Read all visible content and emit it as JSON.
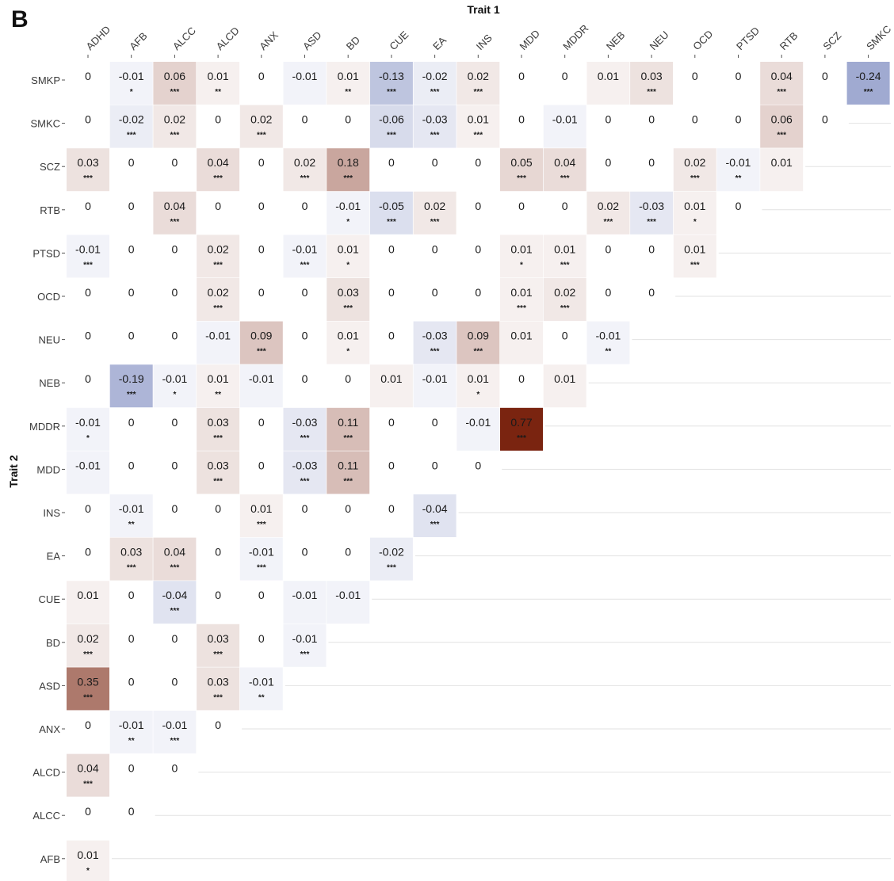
{
  "panel_label": "B",
  "chart_data": {
    "type": "heatmap",
    "xlabel": "Trait 1",
    "ylabel": "Trait 2",
    "x_categories": [
      "ADHD",
      "AFB",
      "ALCC",
      "ALCD",
      "ANX",
      "ASD",
      "BD",
      "CUE",
      "EA",
      "INS",
      "MDD",
      "MDDR",
      "NEB",
      "NEU",
      "OCD",
      "PTSD",
      "RTB",
      "SCZ",
      "SMKC"
    ],
    "y_categories": [
      "SMKP",
      "SMKC",
      "SCZ",
      "RTB",
      "PTSD",
      "OCD",
      "NEU",
      "NEB",
      "MDDR",
      "MDD",
      "INS",
      "EA",
      "CUE",
      "BD",
      "ASD",
      "ANX",
      "ALCD",
      "ALCC",
      "AFB"
    ],
    "color_scale": {
      "negative": "#3b4fa0",
      "zero": "#ffffff",
      "positive": "#7a2410",
      "max_abs": 0.77
    },
    "grid": "horizontal-lines",
    "rows": [
      {
        "trait": "SMKP",
        "values": [
          "0",
          "-0.01",
          "0.06",
          "0.01",
          "0",
          "-0.01",
          "0.01",
          "-0.13",
          "-0.02",
          "0.02",
          "0",
          "0",
          "0.01",
          "0.03",
          "0",
          "0",
          "0.04",
          "0",
          "-0.24"
        ],
        "sig": [
          "",
          "*",
          "***",
          "**",
          "",
          "",
          "**",
          "***",
          "***",
          "***",
          "",
          "",
          "",
          "***",
          "",
          "",
          "***",
          "",
          "***"
        ]
      },
      {
        "trait": "SMKC",
        "values": [
          "0",
          "-0.02",
          "0.02",
          "0",
          "0.02",
          "0",
          "0",
          "-0.06",
          "-0.03",
          "0.01",
          "0",
          "-0.01",
          "0",
          "0",
          "0",
          "0",
          "0.06",
          "0"
        ],
        "sig": [
          "",
          "***",
          "***",
          "",
          "***",
          "",
          "",
          "***",
          "***",
          "***",
          "",
          "",
          "",
          "",
          "",
          "",
          "***",
          ""
        ]
      },
      {
        "trait": "SCZ",
        "values": [
          "0.03",
          "0",
          "0",
          "0.04",
          "0",
          "0.02",
          "0.18",
          "0",
          "0",
          "0",
          "0.05",
          "0.04",
          "0",
          "0",
          "0.02",
          "-0.01",
          "0.01"
        ],
        "sig": [
          "***",
          "",
          "",
          "***",
          "",
          "***",
          "***",
          "",
          "",
          "",
          "***",
          "***",
          "",
          "",
          "***",
          "**",
          ""
        ]
      },
      {
        "trait": "RTB",
        "values": [
          "0",
          "0",
          "0.04",
          "0",
          "0",
          "0",
          "-0.01",
          "-0.05",
          "0.02",
          "0",
          "0",
          "0",
          "0.02",
          "-0.03",
          "0.01",
          "0"
        ],
        "sig": [
          "",
          "",
          "***",
          "",
          "",
          "",
          "*",
          "***",
          "***",
          "",
          "",
          "",
          "***",
          "***",
          "*",
          ""
        ]
      },
      {
        "trait": "PTSD",
        "values": [
          "-0.01",
          "0",
          "0",
          "0.02",
          "0",
          "-0.01",
          "0.01",
          "0",
          "0",
          "0",
          "0.01",
          "0.01",
          "0",
          "0",
          "0.01"
        ],
        "sig": [
          "***",
          "",
          "",
          "***",
          "",
          "***",
          "*",
          "",
          "",
          "",
          "*",
          "***",
          "",
          "",
          "***"
        ]
      },
      {
        "trait": "OCD",
        "values": [
          "0",
          "0",
          "0",
          "0.02",
          "0",
          "0",
          "0.03",
          "0",
          "0",
          "0",
          "0.01",
          "0.02",
          "0",
          "0"
        ],
        "sig": [
          "",
          "",
          "",
          "***",
          "",
          "",
          "***",
          "",
          "",
          "",
          "***",
          "***",
          "",
          ""
        ]
      },
      {
        "trait": "NEU",
        "values": [
          "0",
          "0",
          "0",
          "-0.01",
          "0.09",
          "0",
          "0.01",
          "0",
          "-0.03",
          "0.09",
          "0.01",
          "0",
          "-0.01"
        ],
        "sig": [
          "",
          "",
          "",
          "",
          "***",
          "",
          "*",
          "",
          "***",
          "***",
          "",
          "",
          "**"
        ]
      },
      {
        "trait": "NEB",
        "values": [
          "0",
          "-0.19",
          "-0.01",
          "0.01",
          "-0.01",
          "0",
          "0",
          "0.01",
          "-0.01",
          "0.01",
          "0",
          "0.01"
        ],
        "sig": [
          "",
          "***",
          "*",
          "**",
          "",
          "",
          "",
          "",
          "",
          "*",
          "",
          ""
        ]
      },
      {
        "trait": "MDDR",
        "values": [
          "-0.01",
          "0",
          "0",
          "0.03",
          "0",
          "-0.03",
          "0.11",
          "0",
          "0",
          "-0.01",
          "0.77"
        ],
        "sig": [
          "*",
          "",
          "",
          "***",
          "",
          "***",
          "***",
          "",
          "",
          "",
          "***"
        ]
      },
      {
        "trait": "MDD",
        "values": [
          "-0.01",
          "0",
          "0",
          "0.03",
          "0",
          "-0.03",
          "0.11",
          "0",
          "0",
          "0"
        ],
        "sig": [
          "",
          "",
          "",
          "***",
          "",
          "***",
          "***",
          "",
          "",
          ""
        ]
      },
      {
        "trait": "INS",
        "values": [
          "0",
          "-0.01",
          "0",
          "0",
          "0.01",
          "0",
          "0",
          "0",
          "-0.04"
        ],
        "sig": [
          "",
          "**",
          "",
          "",
          "***",
          "",
          "",
          "",
          "***"
        ]
      },
      {
        "trait": "EA",
        "values": [
          "0",
          "0.03",
          "0.04",
          "0",
          "-0.01",
          "0",
          "0",
          "-0.02"
        ],
        "sig": [
          "",
          "***",
          "***",
          "",
          "***",
          "",
          "",
          "***"
        ]
      },
      {
        "trait": "CUE",
        "values": [
          "0.01",
          "0",
          "-0.04",
          "0",
          "0",
          "-0.01",
          "-0.01"
        ],
        "sig": [
          "",
          "",
          "***",
          "",
          "",
          "",
          ""
        ]
      },
      {
        "trait": "BD",
        "values": [
          "0.02",
          "0",
          "0",
          "0.03",
          "0",
          "-0.01"
        ],
        "sig": [
          "***",
          "",
          "",
          "***",
          "",
          "***"
        ]
      },
      {
        "trait": "ASD",
        "values": [
          "0.35",
          "0",
          "0",
          "0.03",
          "-0.01"
        ],
        "sig": [
          "***",
          "",
          "",
          "***",
          "**"
        ]
      },
      {
        "trait": "ANX",
        "values": [
          "0",
          "-0.01",
          "-0.01",
          "0"
        ],
        "sig": [
          "",
          "**",
          "***",
          ""
        ]
      },
      {
        "trait": "ALCD",
        "values": [
          "0.04",
          "0",
          "0"
        ],
        "sig": [
          "***",
          "",
          ""
        ]
      },
      {
        "trait": "ALCC",
        "values": [
          "0",
          "0"
        ],
        "sig": [
          "",
          ""
        ]
      },
      {
        "trait": "AFB",
        "values": [
          "0.01"
        ],
        "sig": [
          "*"
        ]
      }
    ]
  }
}
